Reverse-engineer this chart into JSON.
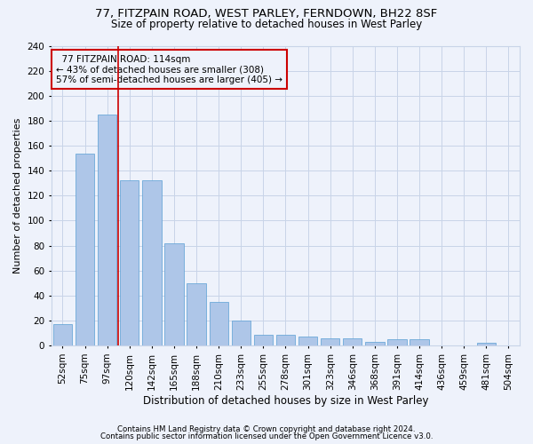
{
  "title1": "77, FITZPAIN ROAD, WEST PARLEY, FERNDOWN, BH22 8SF",
  "title2": "Size of property relative to detached houses in West Parley",
  "xlabel": "Distribution of detached houses by size in West Parley",
  "ylabel": "Number of detached properties",
  "footer1": "Contains HM Land Registry data © Crown copyright and database right 2024.",
  "footer2": "Contains public sector information licensed under the Open Government Licence v3.0.",
  "annotation_line1": "  77 FITZPAIN ROAD: 114sqm",
  "annotation_line2": "← 43% of detached houses are smaller (308)",
  "annotation_line3": "57% of semi-detached houses are larger (405) →",
  "bar_categories": [
    "52sqm",
    "75sqm",
    "97sqm",
    "120sqm",
    "142sqm",
    "165sqm",
    "188sqm",
    "210sqm",
    "233sqm",
    "255sqm",
    "278sqm",
    "301sqm",
    "323sqm",
    "346sqm",
    "368sqm",
    "391sqm",
    "414sqm",
    "436sqm",
    "459sqm",
    "481sqm",
    "504sqm"
  ],
  "bar_values": [
    17,
    154,
    185,
    132,
    132,
    82,
    50,
    35,
    20,
    9,
    9,
    7,
    6,
    6,
    3,
    5,
    5,
    0,
    0,
    2,
    0
  ],
  "bar_color": "#aec6e8",
  "bar_edge_color": "#5a9fd4",
  "vline_x_index": 2.5,
  "vline_color": "#cc0000",
  "ylim": [
    0,
    240
  ],
  "yticks": [
    0,
    20,
    40,
    60,
    80,
    100,
    120,
    140,
    160,
    180,
    200,
    220,
    240
  ],
  "annotation_box_color": "#cc0000",
  "background_color": "#eef2fb",
  "grid_color": "#c8d4e8",
  "title1_fontsize": 9.5,
  "title2_fontsize": 8.5,
  "xlabel_fontsize": 8.5,
  "ylabel_fontsize": 8,
  "footer_fontsize": 6.2,
  "annotation_fontsize": 7.5,
  "tick_fontsize": 7.5
}
